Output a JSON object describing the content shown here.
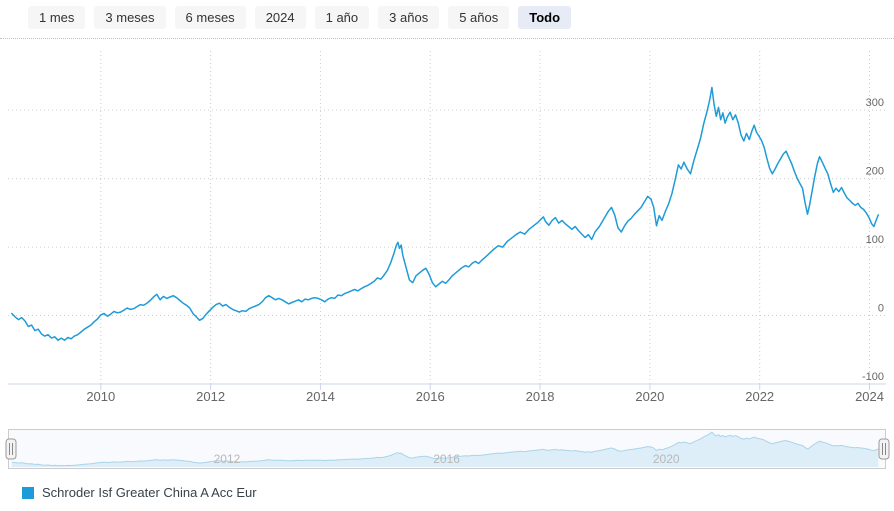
{
  "range_selector": {
    "buttons": [
      {
        "label": "1 mes",
        "selected": false
      },
      {
        "label": "3 meses",
        "selected": false
      },
      {
        "label": "6 meses",
        "selected": false
      },
      {
        "label": "2024",
        "selected": false
      },
      {
        "label": "1 año",
        "selected": false
      },
      {
        "label": "3 años",
        "selected": false
      },
      {
        "label": "5 años",
        "selected": false
      },
      {
        "label": "Todo",
        "selected": true
      }
    ]
  },
  "legend": {
    "items": [
      {
        "label": "Schroder Isf Greater China A Acc Eur",
        "color": "#1b9bd7"
      }
    ]
  },
  "colors": {
    "series_line": "#1f9bd7",
    "legend_swatch": "#1b9bd7",
    "grid": "#cccccc",
    "axis_line": "#ccd6eb",
    "axis_label": "#666666",
    "nav_series_line": "#a9d4ea",
    "nav_series_fill": "#ddeef8",
    "nav_mask": "#6c85c2",
    "nav_outline": "#cccccc",
    "nav_label": "#b8b8b8",
    "handle_fill": "#f3f3f3",
    "handle_stroke": "#999999",
    "button_bg": "#f6f6f6",
    "button_selected_bg": "#e7ebf6",
    "button_text": "#333333"
  },
  "chart_data": {
    "type": "line",
    "title": "",
    "xlabel": "",
    "ylabel": "",
    "y_axis_side": "right",
    "grid_style": "dotted",
    "legend_position": "bottom-left",
    "x_ticks": [
      2010,
      2012,
      2014,
      2016,
      2018,
      2020,
      2022,
      2024
    ],
    "y_ticks": [
      -100,
      0,
      100,
      200,
      300
    ],
    "xlim": [
      2008.31,
      2024.3
    ],
    "ylim": [
      -100,
      382
    ],
    "navigator_labels": [
      2012,
      2016,
      2020
    ],
    "series": [
      {
        "name": "Schroder Isf Greater China A Acc Eur",
        "color": "#1f9bd7",
        "points": [
          [
            2008.38,
            3
          ],
          [
            2008.44,
            -2
          ],
          [
            2008.5,
            -6
          ],
          [
            2008.56,
            -3
          ],
          [
            2008.62,
            -8
          ],
          [
            2008.68,
            -16
          ],
          [
            2008.74,
            -14
          ],
          [
            2008.8,
            -22
          ],
          [
            2008.86,
            -20
          ],
          [
            2008.92,
            -27
          ],
          [
            2008.98,
            -30
          ],
          [
            2009.04,
            -28
          ],
          [
            2009.1,
            -33
          ],
          [
            2009.16,
            -31
          ],
          [
            2009.22,
            -36
          ],
          [
            2009.28,
            -33
          ],
          [
            2009.34,
            -36
          ],
          [
            2009.4,
            -32
          ],
          [
            2009.46,
            -34
          ],
          [
            2009.52,
            -30
          ],
          [
            2009.58,
            -28
          ],
          [
            2009.64,
            -24
          ],
          [
            2009.7,
            -20
          ],
          [
            2009.76,
            -17
          ],
          [
            2009.82,
            -14
          ],
          [
            2009.88,
            -9
          ],
          [
            2009.94,
            -5
          ],
          [
            2010,
            1
          ],
          [
            2010.06,
            3
          ],
          [
            2010.12,
            -1
          ],
          [
            2010.18,
            2
          ],
          [
            2010.24,
            6
          ],
          [
            2010.3,
            4
          ],
          [
            2010.36,
            5
          ],
          [
            2010.42,
            8
          ],
          [
            2010.48,
            11
          ],
          [
            2010.54,
            9
          ],
          [
            2010.6,
            10
          ],
          [
            2010.66,
            13
          ],
          [
            2010.72,
            16
          ],
          [
            2010.78,
            15
          ],
          [
            2010.84,
            18
          ],
          [
            2010.9,
            22
          ],
          [
            2010.96,
            27
          ],
          [
            2011.02,
            31
          ],
          [
            2011.08,
            23
          ],
          [
            2011.14,
            28
          ],
          [
            2011.2,
            25
          ],
          [
            2011.26,
            27
          ],
          [
            2011.32,
            29
          ],
          [
            2011.38,
            26
          ],
          [
            2011.44,
            22
          ],
          [
            2011.5,
            18
          ],
          [
            2011.56,
            15
          ],
          [
            2011.62,
            11
          ],
          [
            2011.68,
            3
          ],
          [
            2011.74,
            -2
          ],
          [
            2011.8,
            -7
          ],
          [
            2011.86,
            -4
          ],
          [
            2011.92,
            2
          ],
          [
            2011.98,
            7
          ],
          [
            2012.04,
            12
          ],
          [
            2012.1,
            16
          ],
          [
            2012.16,
            18
          ],
          [
            2012.22,
            14
          ],
          [
            2012.28,
            16
          ],
          [
            2012.34,
            12
          ],
          [
            2012.4,
            9
          ],
          [
            2012.46,
            7
          ],
          [
            2012.52,
            5
          ],
          [
            2012.58,
            7
          ],
          [
            2012.64,
            6
          ],
          [
            2012.7,
            10
          ],
          [
            2012.76,
            12
          ],
          [
            2012.82,
            14
          ],
          [
            2012.88,
            16
          ],
          [
            2012.94,
            20
          ],
          [
            2013,
            26
          ],
          [
            2013.06,
            29
          ],
          [
            2013.12,
            26
          ],
          [
            2013.18,
            23
          ],
          [
            2013.24,
            25
          ],
          [
            2013.3,
            23
          ],
          [
            2013.36,
            20
          ],
          [
            2013.42,
            17
          ],
          [
            2013.48,
            19
          ],
          [
            2013.54,
            21
          ],
          [
            2013.6,
            23
          ],
          [
            2013.66,
            20
          ],
          [
            2013.72,
            24
          ],
          [
            2013.78,
            23
          ],
          [
            2013.84,
            25
          ],
          [
            2013.9,
            26
          ],
          [
            2013.96,
            25
          ],
          [
            2014.02,
            23
          ],
          [
            2014.08,
            20
          ],
          [
            2014.14,
            24
          ],
          [
            2014.2,
            26
          ],
          [
            2014.26,
            25
          ],
          [
            2014.32,
            30
          ],
          [
            2014.38,
            29
          ],
          [
            2014.44,
            32
          ],
          [
            2014.5,
            34
          ],
          [
            2014.56,
            36
          ],
          [
            2014.62,
            38
          ],
          [
            2014.68,
            36
          ],
          [
            2014.74,
            39
          ],
          [
            2014.8,
            42
          ],
          [
            2014.86,
            44
          ],
          [
            2014.92,
            47
          ],
          [
            2014.98,
            50
          ],
          [
            2015.04,
            55
          ],
          [
            2015.1,
            53
          ],
          [
            2015.16,
            59
          ],
          [
            2015.22,
            66
          ],
          [
            2015.28,
            77
          ],
          [
            2015.34,
            91
          ],
          [
            2015.38,
            102
          ],
          [
            2015.41,
            107
          ],
          [
            2015.44,
            98
          ],
          [
            2015.47,
            103
          ],
          [
            2015.5,
            88
          ],
          [
            2015.56,
            70
          ],
          [
            2015.62,
            52
          ],
          [
            2015.68,
            48
          ],
          [
            2015.74,
            58
          ],
          [
            2015.8,
            62
          ],
          [
            2015.86,
            66
          ],
          [
            2015.92,
            69
          ],
          [
            2015.98,
            60
          ],
          [
            2016.04,
            48
          ],
          [
            2016.1,
            42
          ],
          [
            2016.16,
            46
          ],
          [
            2016.22,
            50
          ],
          [
            2016.28,
            47
          ],
          [
            2016.34,
            52
          ],
          [
            2016.4,
            58
          ],
          [
            2016.46,
            62
          ],
          [
            2016.52,
            66
          ],
          [
            2016.58,
            70
          ],
          [
            2016.64,
            73
          ],
          [
            2016.7,
            71
          ],
          [
            2016.76,
            76
          ],
          [
            2016.82,
            79
          ],
          [
            2016.88,
            76
          ],
          [
            2016.94,
            81
          ],
          [
            2017,
            85
          ],
          [
            2017.08,
            91
          ],
          [
            2017.16,
            97
          ],
          [
            2017.24,
            102
          ],
          [
            2017.32,
            100
          ],
          [
            2017.4,
            108
          ],
          [
            2017.48,
            113
          ],
          [
            2017.56,
            118
          ],
          [
            2017.64,
            122
          ],
          [
            2017.72,
            119
          ],
          [
            2017.8,
            126
          ],
          [
            2017.88,
            131
          ],
          [
            2017.96,
            136
          ],
          [
            2018.02,
            141
          ],
          [
            2018.06,
            144
          ],
          [
            2018.1,
            137
          ],
          [
            2018.16,
            132
          ],
          [
            2018.22,
            139
          ],
          [
            2018.28,
            143
          ],
          [
            2018.34,
            135
          ],
          [
            2018.4,
            139
          ],
          [
            2018.46,
            134
          ],
          [
            2018.52,
            130
          ],
          [
            2018.58,
            126
          ],
          [
            2018.64,
            130
          ],
          [
            2018.7,
            124
          ],
          [
            2018.76,
            119
          ],
          [
            2018.82,
            114
          ],
          [
            2018.88,
            118
          ],
          [
            2018.94,
            111
          ],
          [
            2019,
            122
          ],
          [
            2019.08,
            130
          ],
          [
            2019.16,
            141
          ],
          [
            2019.24,
            152
          ],
          [
            2019.3,
            158
          ],
          [
            2019.36,
            147
          ],
          [
            2019.42,
            128
          ],
          [
            2019.48,
            122
          ],
          [
            2019.54,
            131
          ],
          [
            2019.6,
            138
          ],
          [
            2019.66,
            142
          ],
          [
            2019.72,
            148
          ],
          [
            2019.78,
            153
          ],
          [
            2019.84,
            158
          ],
          [
            2019.9,
            166
          ],
          [
            2019.96,
            174
          ],
          [
            2020.02,
            170
          ],
          [
            2020.07,
            158
          ],
          [
            2020.12,
            131
          ],
          [
            2020.17,
            146
          ],
          [
            2020.22,
            139
          ],
          [
            2020.28,
            152
          ],
          [
            2020.34,
            163
          ],
          [
            2020.4,
            178
          ],
          [
            2020.46,
            198
          ],
          [
            2020.52,
            220
          ],
          [
            2020.57,
            214
          ],
          [
            2020.62,
            224
          ],
          [
            2020.68,
            214
          ],
          [
            2020.74,
            207
          ],
          [
            2020.8,
            226
          ],
          [
            2020.86,
            242
          ],
          [
            2020.92,
            258
          ],
          [
            2020.98,
            280
          ],
          [
            2021.04,
            298
          ],
          [
            2021.09,
            315
          ],
          [
            2021.13,
            333
          ],
          [
            2021.17,
            308
          ],
          [
            2021.21,
            291
          ],
          [
            2021.25,
            304
          ],
          [
            2021.29,
            286
          ],
          [
            2021.33,
            296
          ],
          [
            2021.37,
            281
          ],
          [
            2021.41,
            290
          ],
          [
            2021.46,
            297
          ],
          [
            2021.51,
            286
          ],
          [
            2021.56,
            293
          ],
          [
            2021.61,
            281
          ],
          [
            2021.66,
            264
          ],
          [
            2021.71,
            255
          ],
          [
            2021.76,
            266
          ],
          [
            2021.81,
            257
          ],
          [
            2021.86,
            270
          ],
          [
            2021.9,
            278
          ],
          [
            2021.94,
            268
          ],
          [
            2021.98,
            263
          ],
          [
            2022.03,
            256
          ],
          [
            2022.08,
            246
          ],
          [
            2022.13,
            230
          ],
          [
            2022.18,
            215
          ],
          [
            2022.23,
            207
          ],
          [
            2022.28,
            214
          ],
          [
            2022.33,
            222
          ],
          [
            2022.38,
            229
          ],
          [
            2022.43,
            236
          ],
          [
            2022.48,
            240
          ],
          [
            2022.53,
            231
          ],
          [
            2022.58,
            222
          ],
          [
            2022.63,
            211
          ],
          [
            2022.68,
            201
          ],
          [
            2022.73,
            193
          ],
          [
            2022.78,
            186
          ],
          [
            2022.83,
            163
          ],
          [
            2022.87,
            148
          ],
          [
            2022.91,
            162
          ],
          [
            2022.95,
            180
          ],
          [
            2023,
            202
          ],
          [
            2023.05,
            222
          ],
          [
            2023.09,
            232
          ],
          [
            2023.14,
            224
          ],
          [
            2023.19,
            215
          ],
          [
            2023.24,
            207
          ],
          [
            2023.29,
            193
          ],
          [
            2023.34,
            180
          ],
          [
            2023.39,
            186
          ],
          [
            2023.44,
            181
          ],
          [
            2023.49,
            187
          ],
          [
            2023.54,
            179
          ],
          [
            2023.59,
            172
          ],
          [
            2023.64,
            168
          ],
          [
            2023.69,
            164
          ],
          [
            2023.74,
            161
          ],
          [
            2023.79,
            164
          ],
          [
            2023.84,
            158
          ],
          [
            2023.89,
            155
          ],
          [
            2023.94,
            150
          ],
          [
            2023.99,
            143
          ],
          [
            2024.04,
            134
          ],
          [
            2024.08,
            130
          ],
          [
            2024.12,
            139
          ],
          [
            2024.16,
            147
          ]
        ]
      }
    ]
  }
}
